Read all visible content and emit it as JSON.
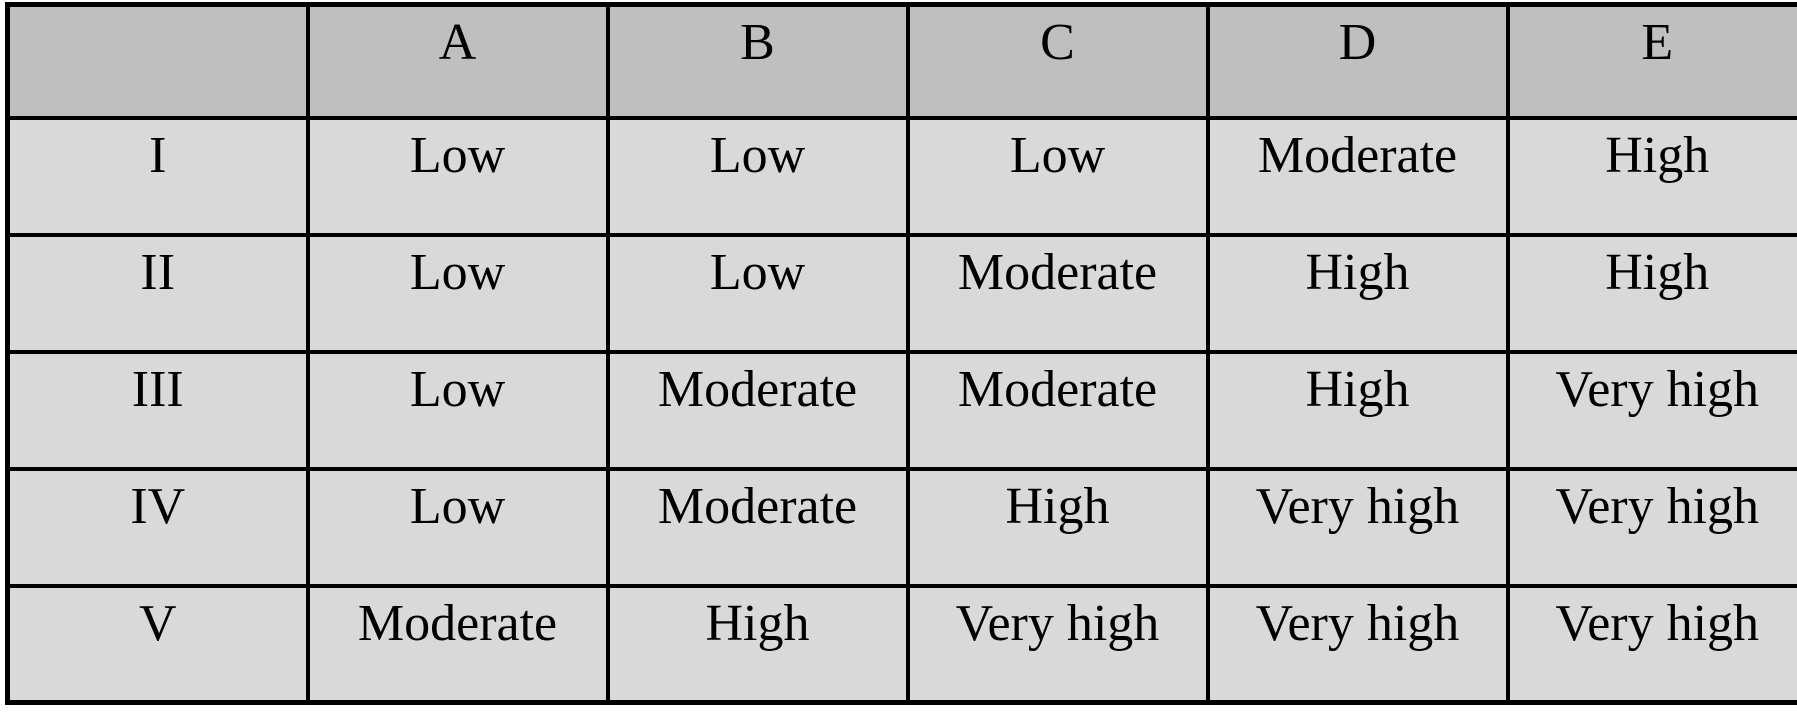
{
  "table": {
    "column_headers": [
      "",
      "A",
      "B",
      "C",
      "D",
      "E"
    ],
    "rows": [
      {
        "label": "I",
        "values": [
          "Low",
          "Low",
          "Low",
          "Moderate",
          "High"
        ]
      },
      {
        "label": "II",
        "values": [
          "Low",
          "Low",
          "Moderate",
          "High",
          "High"
        ]
      },
      {
        "label": "III",
        "values": [
          "Low",
          "Moderate",
          "Moderate",
          "High",
          "Very high"
        ]
      },
      {
        "label": "IV",
        "values": [
          "Low",
          "Moderate",
          "High",
          "Very high",
          "Very high"
        ]
      },
      {
        "label": "V",
        "values": [
          "Moderate",
          "High",
          "Very high",
          "Very high",
          "Very high"
        ]
      }
    ],
    "colors": {
      "header_bg": "#bfbfbf",
      "body_bg": "#d9d9d9",
      "border": "#000000",
      "text": "#000000"
    }
  }
}
